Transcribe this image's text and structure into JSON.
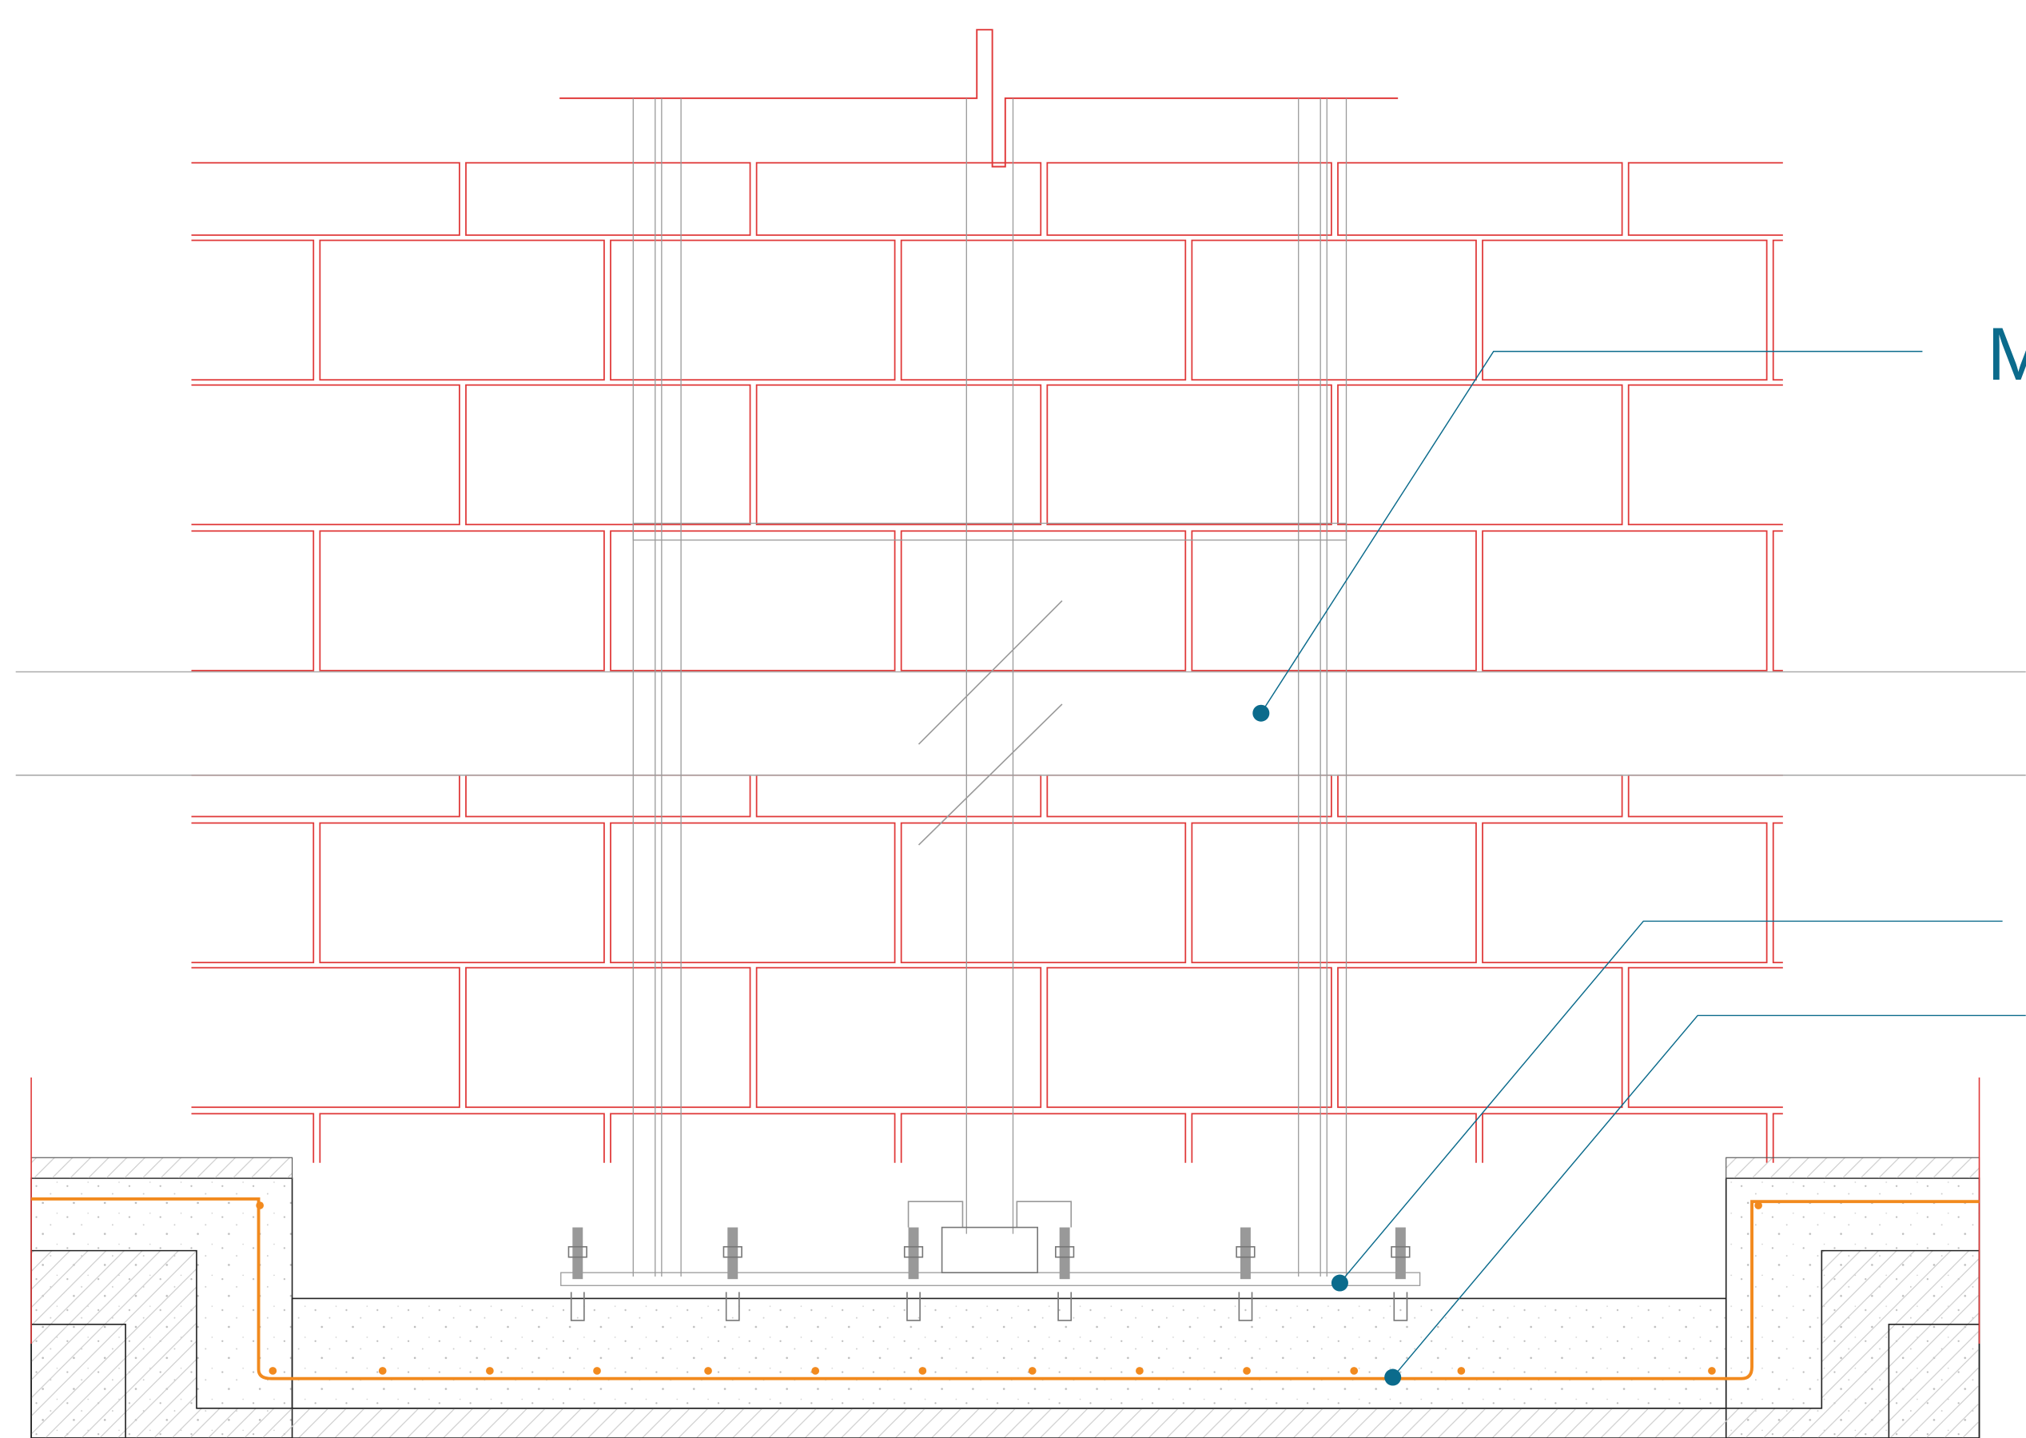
{
  "annotations": [
    {
      "label": "M"
    }
  ]
}
